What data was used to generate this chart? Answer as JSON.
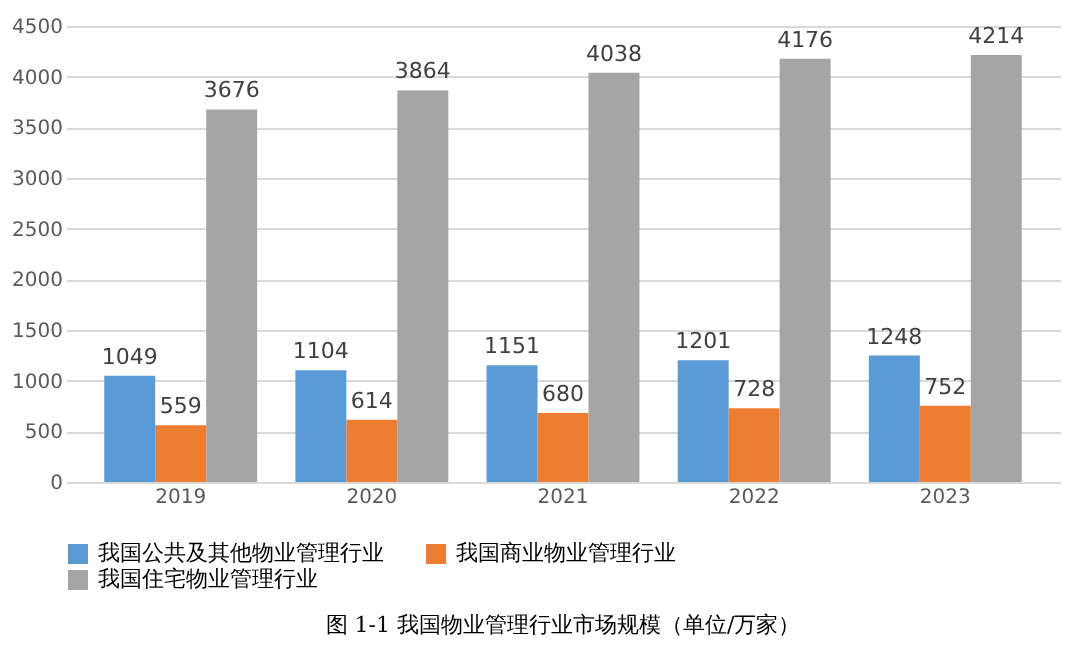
{
  "chart_data": {
    "type": "bar",
    "categories": [
      "2019",
      "2020",
      "2021",
      "2022",
      "2023"
    ],
    "series": [
      {
        "name": "我国公共及其他物业管理行业",
        "color": "#5b9bd5",
        "values": [
          1049,
          1104,
          1151,
          1201,
          1248
        ]
      },
      {
        "name": "我国商业物业管理行业",
        "color": "#ed7d31",
        "values": [
          559,
          614,
          680,
          728,
          752
        ]
      },
      {
        "name": "我国住宅物业管理行业",
        "color": "#a5a5a5",
        "values": [
          3676,
          3864,
          4038,
          4176,
          4214
        ]
      }
    ],
    "ylim": [
      0,
      4500
    ],
    "yticks": [
      0,
      500,
      1000,
      1500,
      2000,
      2500,
      3000,
      3500,
      4000,
      4500
    ],
    "grid": "y",
    "legend": "bottom",
    "data_labels": true,
    "annotations": [
      "图 1-1  我国物业管理行业市场规模（单位/万家）"
    ]
  }
}
